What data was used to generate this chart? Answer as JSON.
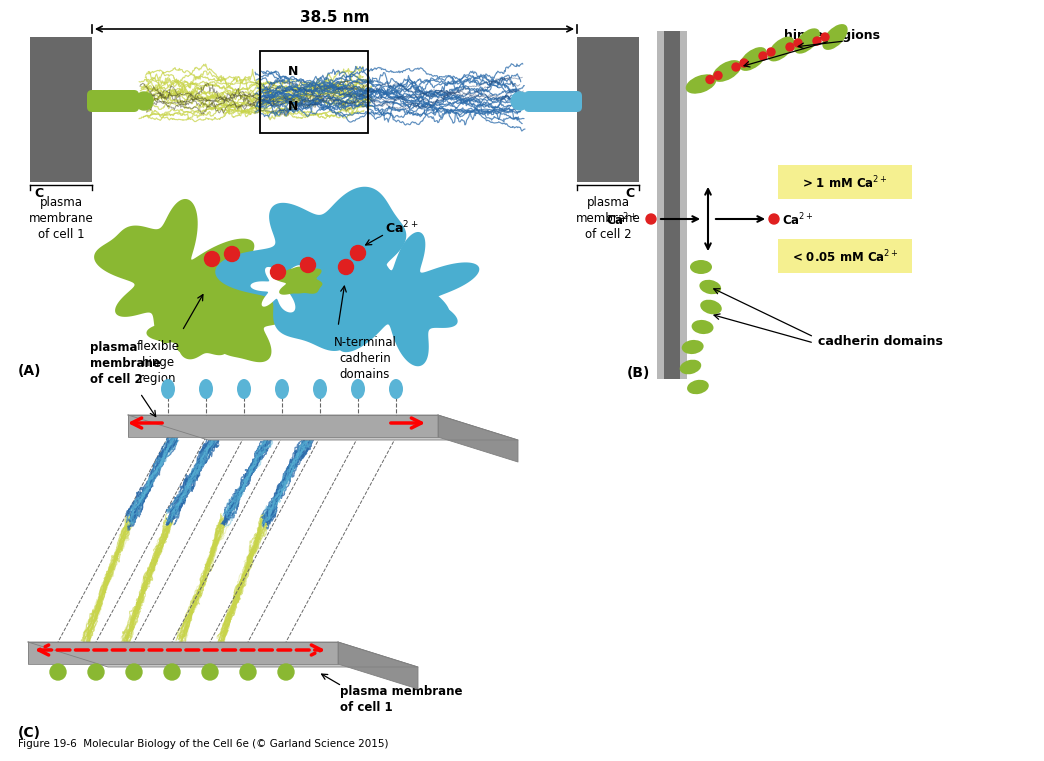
{
  "bg_color": "#ffffff",
  "gray_dark": "#686868",
  "gray_mid": "#909090",
  "gray_light": "#b8b8b8",
  "gray_top": "#c8c8c8",
  "green": "#8ab832",
  "green_chain": "#c8d44a",
  "blue_light": "#5ab4d6",
  "blue_chain": "#2a6aaa",
  "red": "#e02020",
  "yellow_bg": "#f5f090",
  "nm_label": "38.5 nm",
  "label_A": "(A)",
  "label_B": "(B)",
  "label_C": "(C)",
  "plasma1": "plasma\nmembrane\nof cell 1",
  "plasma2": "plasma\nmembrane\nof cell 2",
  "flexible_hinge": "flexible\nhinge\nregion",
  "n_terminal": "N-terminal\ncadherin\ndomains",
  "hinge_regions": "hinge regions",
  "cadherin_domains": "cadherin domains",
  "plasma2c": "plasma\nmembrane\nof cell 2",
  "plasma1c": "plasma membrane\nof cell 1",
  "caption": "Figure 19-6  Molecular Biology of the Cell 6e (© Garland Science 2015)"
}
